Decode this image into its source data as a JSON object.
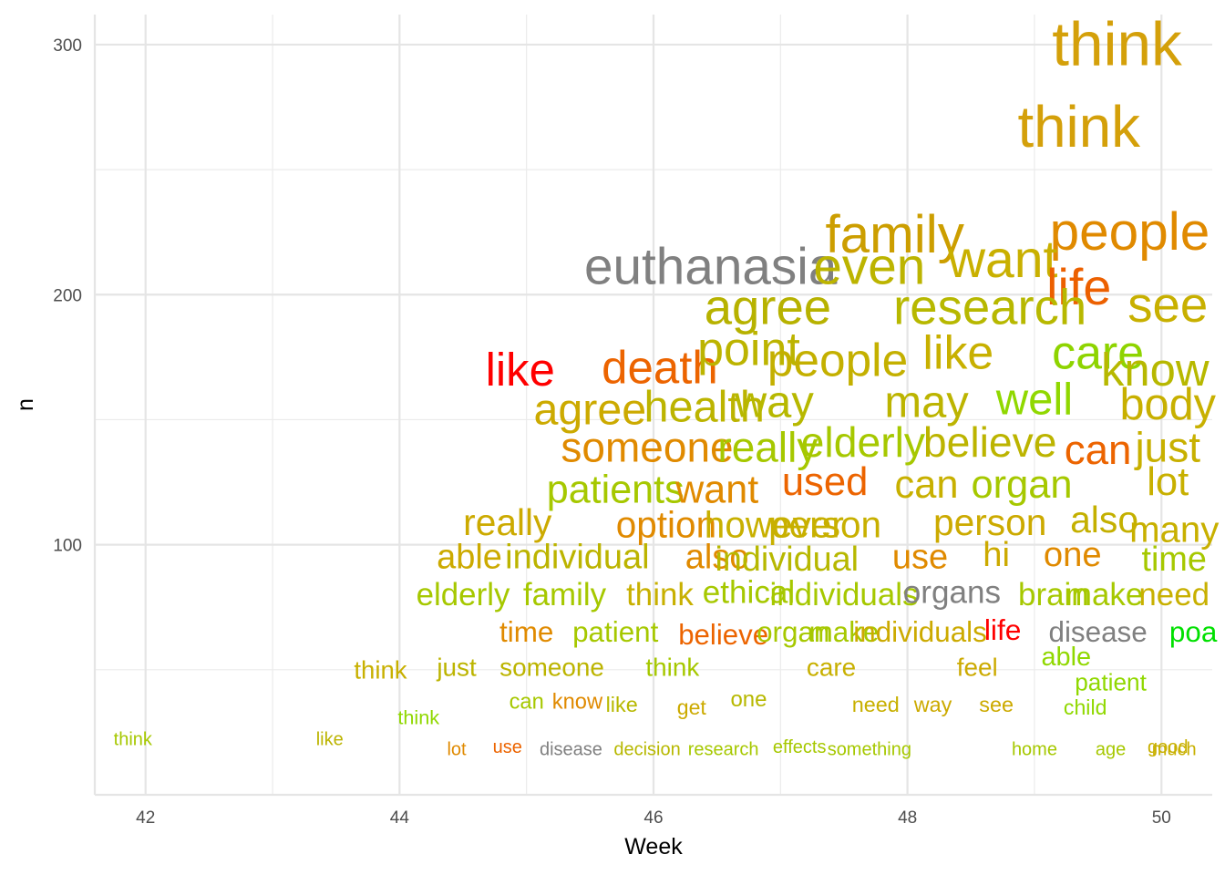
{
  "chart_data": {
    "type": "scatter",
    "xlabel": "Week",
    "ylabel": "n",
    "xlim": [
      41.6,
      50.4
    ],
    "ylim": [
      0,
      312
    ],
    "x_ticks": [
      42,
      44,
      46,
      48,
      50
    ],
    "y_ticks": [
      100,
      200,
      300
    ],
    "grid": true,
    "points": [
      {
        "label": "think",
        "x": 49.65,
        "y": 300,
        "color": "#d4a00a"
      },
      {
        "label": "think",
        "x": 49.35,
        "y": 267,
        "color": "#d4a00a"
      },
      {
        "label": "people",
        "x": 49.75,
        "y": 225,
        "color": "#e08a00"
      },
      {
        "label": "family",
        "x": 47.9,
        "y": 224,
        "color": "#cc9e00"
      },
      {
        "label": "euthanasia",
        "x": 46.45,
        "y": 211,
        "color": "#808080"
      },
      {
        "label": "even",
        "x": 47.7,
        "y": 211,
        "color": "#bcb400"
      },
      {
        "label": "want",
        "x": 48.75,
        "y": 214,
        "color": "#c9b000"
      },
      {
        "label": "life",
        "x": 49.35,
        "y": 203,
        "color": "#ec6000"
      },
      {
        "label": "research",
        "x": 48.65,
        "y": 195,
        "color": "#b7b800"
      },
      {
        "label": "agree",
        "x": 46.9,
        "y": 195,
        "color": "#b7b200"
      },
      {
        "label": "see",
        "x": 50.05,
        "y": 196,
        "color": "#c8b000"
      },
      {
        "label": "like",
        "x": 44.95,
        "y": 170,
        "color": "#ff0000"
      },
      {
        "label": "death",
        "x": 46.05,
        "y": 171,
        "color": "#ec6400"
      },
      {
        "label": "point",
        "x": 46.75,
        "y": 178,
        "color": "#bcb400"
      },
      {
        "label": "people",
        "x": 47.45,
        "y": 174,
        "color": "#c4b000"
      },
      {
        "label": "like",
        "x": 48.4,
        "y": 177,
        "color": "#c8b000"
      },
      {
        "label": "care",
        "x": 49.5,
        "y": 177,
        "color": "#8ed400"
      },
      {
        "label": "know",
        "x": 49.95,
        "y": 170,
        "color": "#b7b800"
      },
      {
        "label": "agree",
        "x": 45.5,
        "y": 154,
        "color": "#ccaa00"
      },
      {
        "label": "health",
        "x": 46.4,
        "y": 155,
        "color": "#bcb400"
      },
      {
        "label": "way",
        "x": 46.95,
        "y": 157,
        "color": "#b7b800"
      },
      {
        "label": "may",
        "x": 48.15,
        "y": 157,
        "color": "#bcb400"
      },
      {
        "label": "well",
        "x": 49.0,
        "y": 158,
        "color": "#90d800"
      },
      {
        "label": "body",
        "x": 50.05,
        "y": 156,
        "color": "#c8b000"
      },
      {
        "label": "someone",
        "x": 45.95,
        "y": 139,
        "color": "#e08a00"
      },
      {
        "label": "really",
        "x": 46.9,
        "y": 139,
        "color": "#a6c800"
      },
      {
        "label": "elderly",
        "x": 47.65,
        "y": 141,
        "color": "#a6c800"
      },
      {
        "label": "believe",
        "x": 48.65,
        "y": 141,
        "color": "#bcb400"
      },
      {
        "label": "can",
        "x": 49.5,
        "y": 138,
        "color": "#ec6400"
      },
      {
        "label": "just",
        "x": 50.05,
        "y": 139,
        "color": "#c8b000"
      },
      {
        "label": "patients",
        "x": 45.7,
        "y": 122,
        "color": "#a6c800"
      },
      {
        "label": "want",
        "x": 46.5,
        "y": 122,
        "color": "#e08a00"
      },
      {
        "label": "used",
        "x": 47.35,
        "y": 125,
        "color": "#ec6400"
      },
      {
        "label": "can",
        "x": 48.15,
        "y": 124,
        "color": "#c8b000"
      },
      {
        "label": "organ",
        "x": 48.9,
        "y": 124,
        "color": "#a6c800"
      },
      {
        "label": "lot",
        "x": 50.05,
        "y": 125,
        "color": "#c8b000"
      },
      {
        "label": "really",
        "x": 44.85,
        "y": 109,
        "color": "#ccaa00"
      },
      {
        "label": "option",
        "x": 46.1,
        "y": 108,
        "color": "#e08a00"
      },
      {
        "label": "however",
        "x": 46.95,
        "y": 108,
        "color": "#c8b000"
      },
      {
        "label": "person",
        "x": 47.35,
        "y": 108,
        "color": "#c8b000"
      },
      {
        "label": "person",
        "x": 48.65,
        "y": 109,
        "color": "#ccaa00"
      },
      {
        "label": "also",
        "x": 49.55,
        "y": 110,
        "color": "#c4b000"
      },
      {
        "label": "many",
        "x": 50.1,
        "y": 106,
        "color": "#c8b000"
      },
      {
        "label": "able",
        "x": 44.55,
        "y": 95,
        "color": "#ccaa00"
      },
      {
        "label": "individual",
        "x": 45.4,
        "y": 95,
        "color": "#bcb400"
      },
      {
        "label": "also",
        "x": 46.5,
        "y": 95,
        "color": "#e08a00"
      },
      {
        "label": "individual",
        "x": 47.05,
        "y": 94,
        "color": "#b7b800"
      },
      {
        "label": "use",
        "x": 48.1,
        "y": 95,
        "color": "#e08a00"
      },
      {
        "label": "hi",
        "x": 48.7,
        "y": 96,
        "color": "#ccaa00"
      },
      {
        "label": "one",
        "x": 49.3,
        "y": 96,
        "color": "#e08a00"
      },
      {
        "label": "time",
        "x": 50.1,
        "y": 94,
        "color": "#a6c800"
      },
      {
        "label": "elderly",
        "x": 44.5,
        "y": 80,
        "color": "#a6c800"
      },
      {
        "label": "family",
        "x": 45.3,
        "y": 80,
        "color": "#a6c800"
      },
      {
        "label": "think",
        "x": 46.05,
        "y": 80,
        "color": "#c8b000"
      },
      {
        "label": "ethical",
        "x": 46.75,
        "y": 81,
        "color": "#a6c800"
      },
      {
        "label": "individuals",
        "x": 47.5,
        "y": 80,
        "color": "#a6c800"
      },
      {
        "label": "organs",
        "x": 48.35,
        "y": 81,
        "color": "#808080"
      },
      {
        "label": "brain",
        "x": 49.15,
        "y": 80,
        "color": "#a6c800"
      },
      {
        "label": "make",
        "x": 49.55,
        "y": 80,
        "color": "#a6c800"
      },
      {
        "label": "need",
        "x": 50.1,
        "y": 80,
        "color": "#c8b000"
      },
      {
        "label": "time",
        "x": 45.0,
        "y": 65,
        "color": "#e08a00"
      },
      {
        "label": "patient",
        "x": 45.7,
        "y": 65,
        "color": "#a6c800"
      },
      {
        "label": "believe",
        "x": 46.55,
        "y": 64,
        "color": "#ec6400"
      },
      {
        "label": "organ",
        "x": 47.1,
        "y": 65,
        "color": "#a6c800"
      },
      {
        "label": "make",
        "x": 47.5,
        "y": 65,
        "color": "#a6c800"
      },
      {
        "label": "individuals",
        "x": 48.1,
        "y": 65,
        "color": "#ccaa00"
      },
      {
        "label": "life",
        "x": 48.75,
        "y": 66,
        "color": "#ff0000"
      },
      {
        "label": "disease",
        "x": 49.5,
        "y": 65,
        "color": "#808080"
      },
      {
        "label": "poa",
        "x": 50.25,
        "y": 65,
        "color": "#00e000"
      },
      {
        "label": "able",
        "x": 49.25,
        "y": 55,
        "color": "#90d800"
      },
      {
        "label": "think",
        "x": 43.85,
        "y": 50,
        "color": "#c8b000"
      },
      {
        "label": "just",
        "x": 44.45,
        "y": 51,
        "color": "#bcb400"
      },
      {
        "label": "someone",
        "x": 45.2,
        "y": 51,
        "color": "#bcb400"
      },
      {
        "label": "think",
        "x": 46.15,
        "y": 51,
        "color": "#a6c800"
      },
      {
        "label": "care",
        "x": 47.4,
        "y": 51,
        "color": "#c8b000"
      },
      {
        "label": "feel",
        "x": 48.55,
        "y": 51,
        "color": "#ccaa00"
      },
      {
        "label": "patient",
        "x": 49.6,
        "y": 45,
        "color": "#90d800"
      },
      {
        "label": "can",
        "x": 45.0,
        "y": 37,
        "color": "#a6c800"
      },
      {
        "label": "know",
        "x": 45.4,
        "y": 37,
        "color": "#e08a00"
      },
      {
        "label": "like",
        "x": 45.75,
        "y": 36,
        "color": "#b7b800"
      },
      {
        "label": "get",
        "x": 46.3,
        "y": 35,
        "color": "#ccaa00"
      },
      {
        "label": "one",
        "x": 46.75,
        "y": 38,
        "color": "#b7b800"
      },
      {
        "label": "need",
        "x": 47.75,
        "y": 36,
        "color": "#c8b000"
      },
      {
        "label": "way",
        "x": 48.2,
        "y": 36,
        "color": "#ccaa00"
      },
      {
        "label": "see",
        "x": 48.7,
        "y": 36,
        "color": "#ccaa00"
      },
      {
        "label": "child",
        "x": 49.4,
        "y": 35,
        "color": "#90d800"
      },
      {
        "label": "think",
        "x": 44.15,
        "y": 31,
        "color": "#90d800"
      },
      {
        "label": "think",
        "x": 41.9,
        "y": 22,
        "color": "#a6c800"
      },
      {
        "label": "like",
        "x": 43.45,
        "y": 22,
        "color": "#bcb400"
      },
      {
        "label": "lot",
        "x": 44.45,
        "y": 18,
        "color": "#e08a00"
      },
      {
        "label": "use",
        "x": 44.85,
        "y": 19,
        "color": "#ec6400"
      },
      {
        "label": "disease",
        "x": 45.35,
        "y": 18,
        "color": "#808080"
      },
      {
        "label": "decision",
        "x": 45.95,
        "y": 18,
        "color": "#b7b800"
      },
      {
        "label": "research",
        "x": 46.55,
        "y": 18,
        "color": "#a6c800"
      },
      {
        "label": "effects",
        "x": 47.15,
        "y": 19,
        "color": "#a6c800"
      },
      {
        "label": "something",
        "x": 47.7,
        "y": 18,
        "color": "#a6c800"
      },
      {
        "label": "home",
        "x": 49.0,
        "y": 18,
        "color": "#a6c800"
      },
      {
        "label": "age",
        "x": 49.6,
        "y": 18,
        "color": "#a6c800"
      },
      {
        "label": "good",
        "x": 50.05,
        "y": 19,
        "color": "#c8b000"
      },
      {
        "label": "much",
        "x": 50.1,
        "y": 18,
        "color": "#c8b000"
      }
    ]
  }
}
